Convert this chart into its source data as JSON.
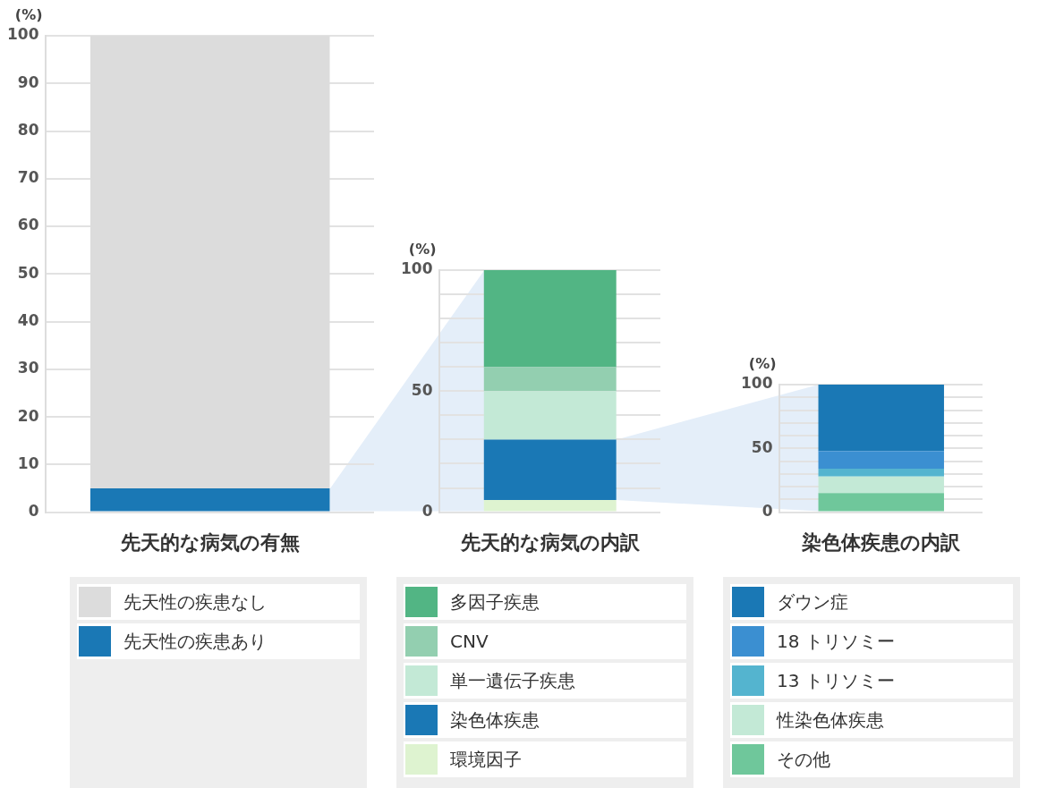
{
  "chart_data": [
    {
      "type": "bar",
      "stacked": true,
      "categories": [
        null
      ],
      "xlabel": "先天的な病気の有無",
      "ylabel": "(%)",
      "ylim": [
        0,
        100
      ],
      "yticks": [
        0,
        10,
        20,
        30,
        40,
        50,
        60,
        70,
        80,
        90,
        100
      ],
      "grid": "y",
      "legend": "bottom",
      "series": [
        {
          "name": "先天性の疾患あり",
          "color": "#1a78b5",
          "values": [
            5
          ]
        },
        {
          "name": "先天性の疾患なし",
          "color": "#dcdcdc",
          "values": [
            95
          ]
        }
      ]
    },
    {
      "type": "bar",
      "stacked": true,
      "categories": [
        null
      ],
      "xlabel": "先天的な病気の内訳",
      "ylabel": "(%)",
      "ylim": [
        0,
        100
      ],
      "yticks": [
        0,
        {
          "value": 10,
          "label": null
        },
        {
          "value": 20,
          "label": null
        },
        {
          "value": 30,
          "label": null
        },
        {
          "value": 40,
          "label": null
        },
        50,
        {
          "value": 60,
          "label": null
        },
        {
          "value": 70,
          "label": null
        },
        {
          "value": 80,
          "label": null
        },
        {
          "value": 90,
          "label": null
        },
        100
      ],
      "grid": "y",
      "legend": "bottom",
      "series": [
        {
          "name": "環境因子",
          "color": "#def3d0",
          "values": [
            5
          ]
        },
        {
          "name": "染色体疾患",
          "color": "#1a78b5",
          "values": [
            25
          ]
        },
        {
          "name": "単一遺伝子疾患",
          "color": "#c3e9d6",
          "values": [
            20
          ]
        },
        {
          "name": "CNV",
          "color": "#93cfb0",
          "values": [
            10
          ]
        },
        {
          "name": "多因子疾患",
          "color": "#52b584",
          "values": [
            40
          ]
        }
      ]
    },
    {
      "type": "bar",
      "stacked": true,
      "categories": [
        null
      ],
      "xlabel": "染色体疾患の内訳",
      "ylabel": "(%)",
      "ylim": [
        0,
        100
      ],
      "yticks": [
        0,
        {
          "value": 10,
          "label": null
        },
        {
          "value": 20,
          "label": null
        },
        {
          "value": 30,
          "label": null
        },
        {
          "value": 40,
          "label": null
        },
        50,
        {
          "value": 60,
          "label": null
        },
        {
          "value": 70,
          "label": null
        },
        {
          "value": 80,
          "label": null
        },
        {
          "value": 90,
          "label": null
        },
        100
      ],
      "grid": "y",
      "legend": "bottom",
      "series": [
        {
          "name": "その他",
          "color": "#6fc79b",
          "values": [
            15
          ]
        },
        {
          "name": "性染色体疾患",
          "color": "#c3e9d6",
          "values": [
            13
          ]
        },
        {
          "name": "13 トリソミー",
          "color": "#54b4cf",
          "values": [
            6
          ]
        },
        {
          "name": "18 トリソミー",
          "color": "#3b8fd1",
          "values": [
            14
          ]
        },
        {
          "name": "ダウン症",
          "color": "#1a78b5",
          "values": [
            52
          ]
        }
      ]
    }
  ]
}
